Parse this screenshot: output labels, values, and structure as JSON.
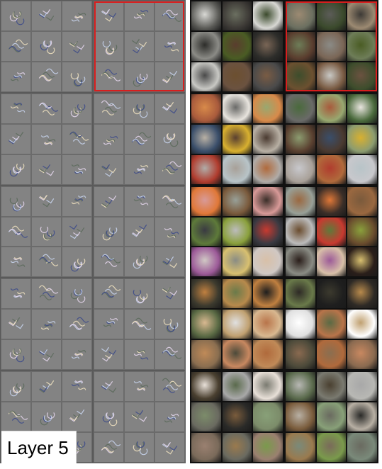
{
  "figure": {
    "label": "Layer 5",
    "grid": {
      "groups_per_side": 10,
      "group_rows": 5,
      "group_cols": 2,
      "cells_per_group": 9
    },
    "colors": {
      "left_background": "#7a7a7a",
      "left_cell": "#838383",
      "right_background": "#2a2a2a",
      "highlight_border": "#d81e1e",
      "label_background": "#ffffff",
      "label_text": "#000000"
    },
    "highlighted_group": {
      "row": 0,
      "col": 1
    },
    "image_tone_rows": [
      [
        "#5c5c58",
        "#3d3a36",
        "#d8d8d4",
        "#6b6f60",
        "#3b4a2c",
        "#9c8a72"
      ],
      [
        "#8b8b86",
        "#4a5c24",
        "#2d2d2a",
        "#5a3d2e",
        "#7a6656",
        "#6e7d58"
      ],
      [
        "#c8c8c4",
        "#6b5240",
        "#4a4a4a",
        "#6c5030",
        "#7a5c44",
        "#3d4d2c"
      ],
      [
        "#a85a3c",
        "#e8e4de",
        "#d88a4a",
        "#6a6a68",
        "#98a870",
        "#4a6a3c"
      ],
      [
        "#3a4e6a",
        "#d8b030",
        "#b8b0a4",
        "#5a4030",
        "#4a3a30",
        "#8c9c70"
      ],
      [
        "#b03c2e",
        "#b8c4c8",
        "#b0aca8",
        "#a8a098",
        "#b06a3c",
        "#c8c8cc"
      ],
      [
        "#e07838",
        "#7a5a3c",
        "#d89a98",
        "#98a098",
        "#3a2e28",
        "#9a6840"
      ],
      [
        "#5e7a3a",
        "#8aa03c",
        "#3a3a42",
        "#bcbcbc",
        "#c83a30",
        "#6a4c2e"
      ],
      [
        "#9c5a98",
        "#d8c070",
        "#d0c8c4",
        "#8a8c84",
        "#d8c0a8",
        "#2a1e1a"
      ],
      [
        "#3c3a2e",
        "#b88a4c",
        "#c08040",
        "#6a7a4a",
        "#1e1e1e",
        "#2e2a26"
      ],
      [
        "#5a6a44",
        "#c0a070",
        "#d8b890",
        "#e0e0e0",
        "#b8744a",
        "#ffffff"
      ],
      [
        "#8a6e50",
        "#c88860",
        "#c08a58",
        "#4c4a3a",
        "#b06a3c",
        "#8a6a50"
      ],
      [
        "#4a4030",
        "#a8a8a8",
        "#e8e0d8",
        "#5a6a4c",
        "#7a7a70",
        "#b8b8b4"
      ],
      [
        "#6a6a60",
        "#2a2a28",
        "#7c8c6a",
        "#7a5c3c",
        "#88a078",
        "#b8b0a4"
      ],
      [
        "#7a6a5a",
        "#6a6a60",
        "#9a8070",
        "#9a7a4e",
        "#7a9a4c",
        "#7a8a7a"
      ]
    ]
  }
}
